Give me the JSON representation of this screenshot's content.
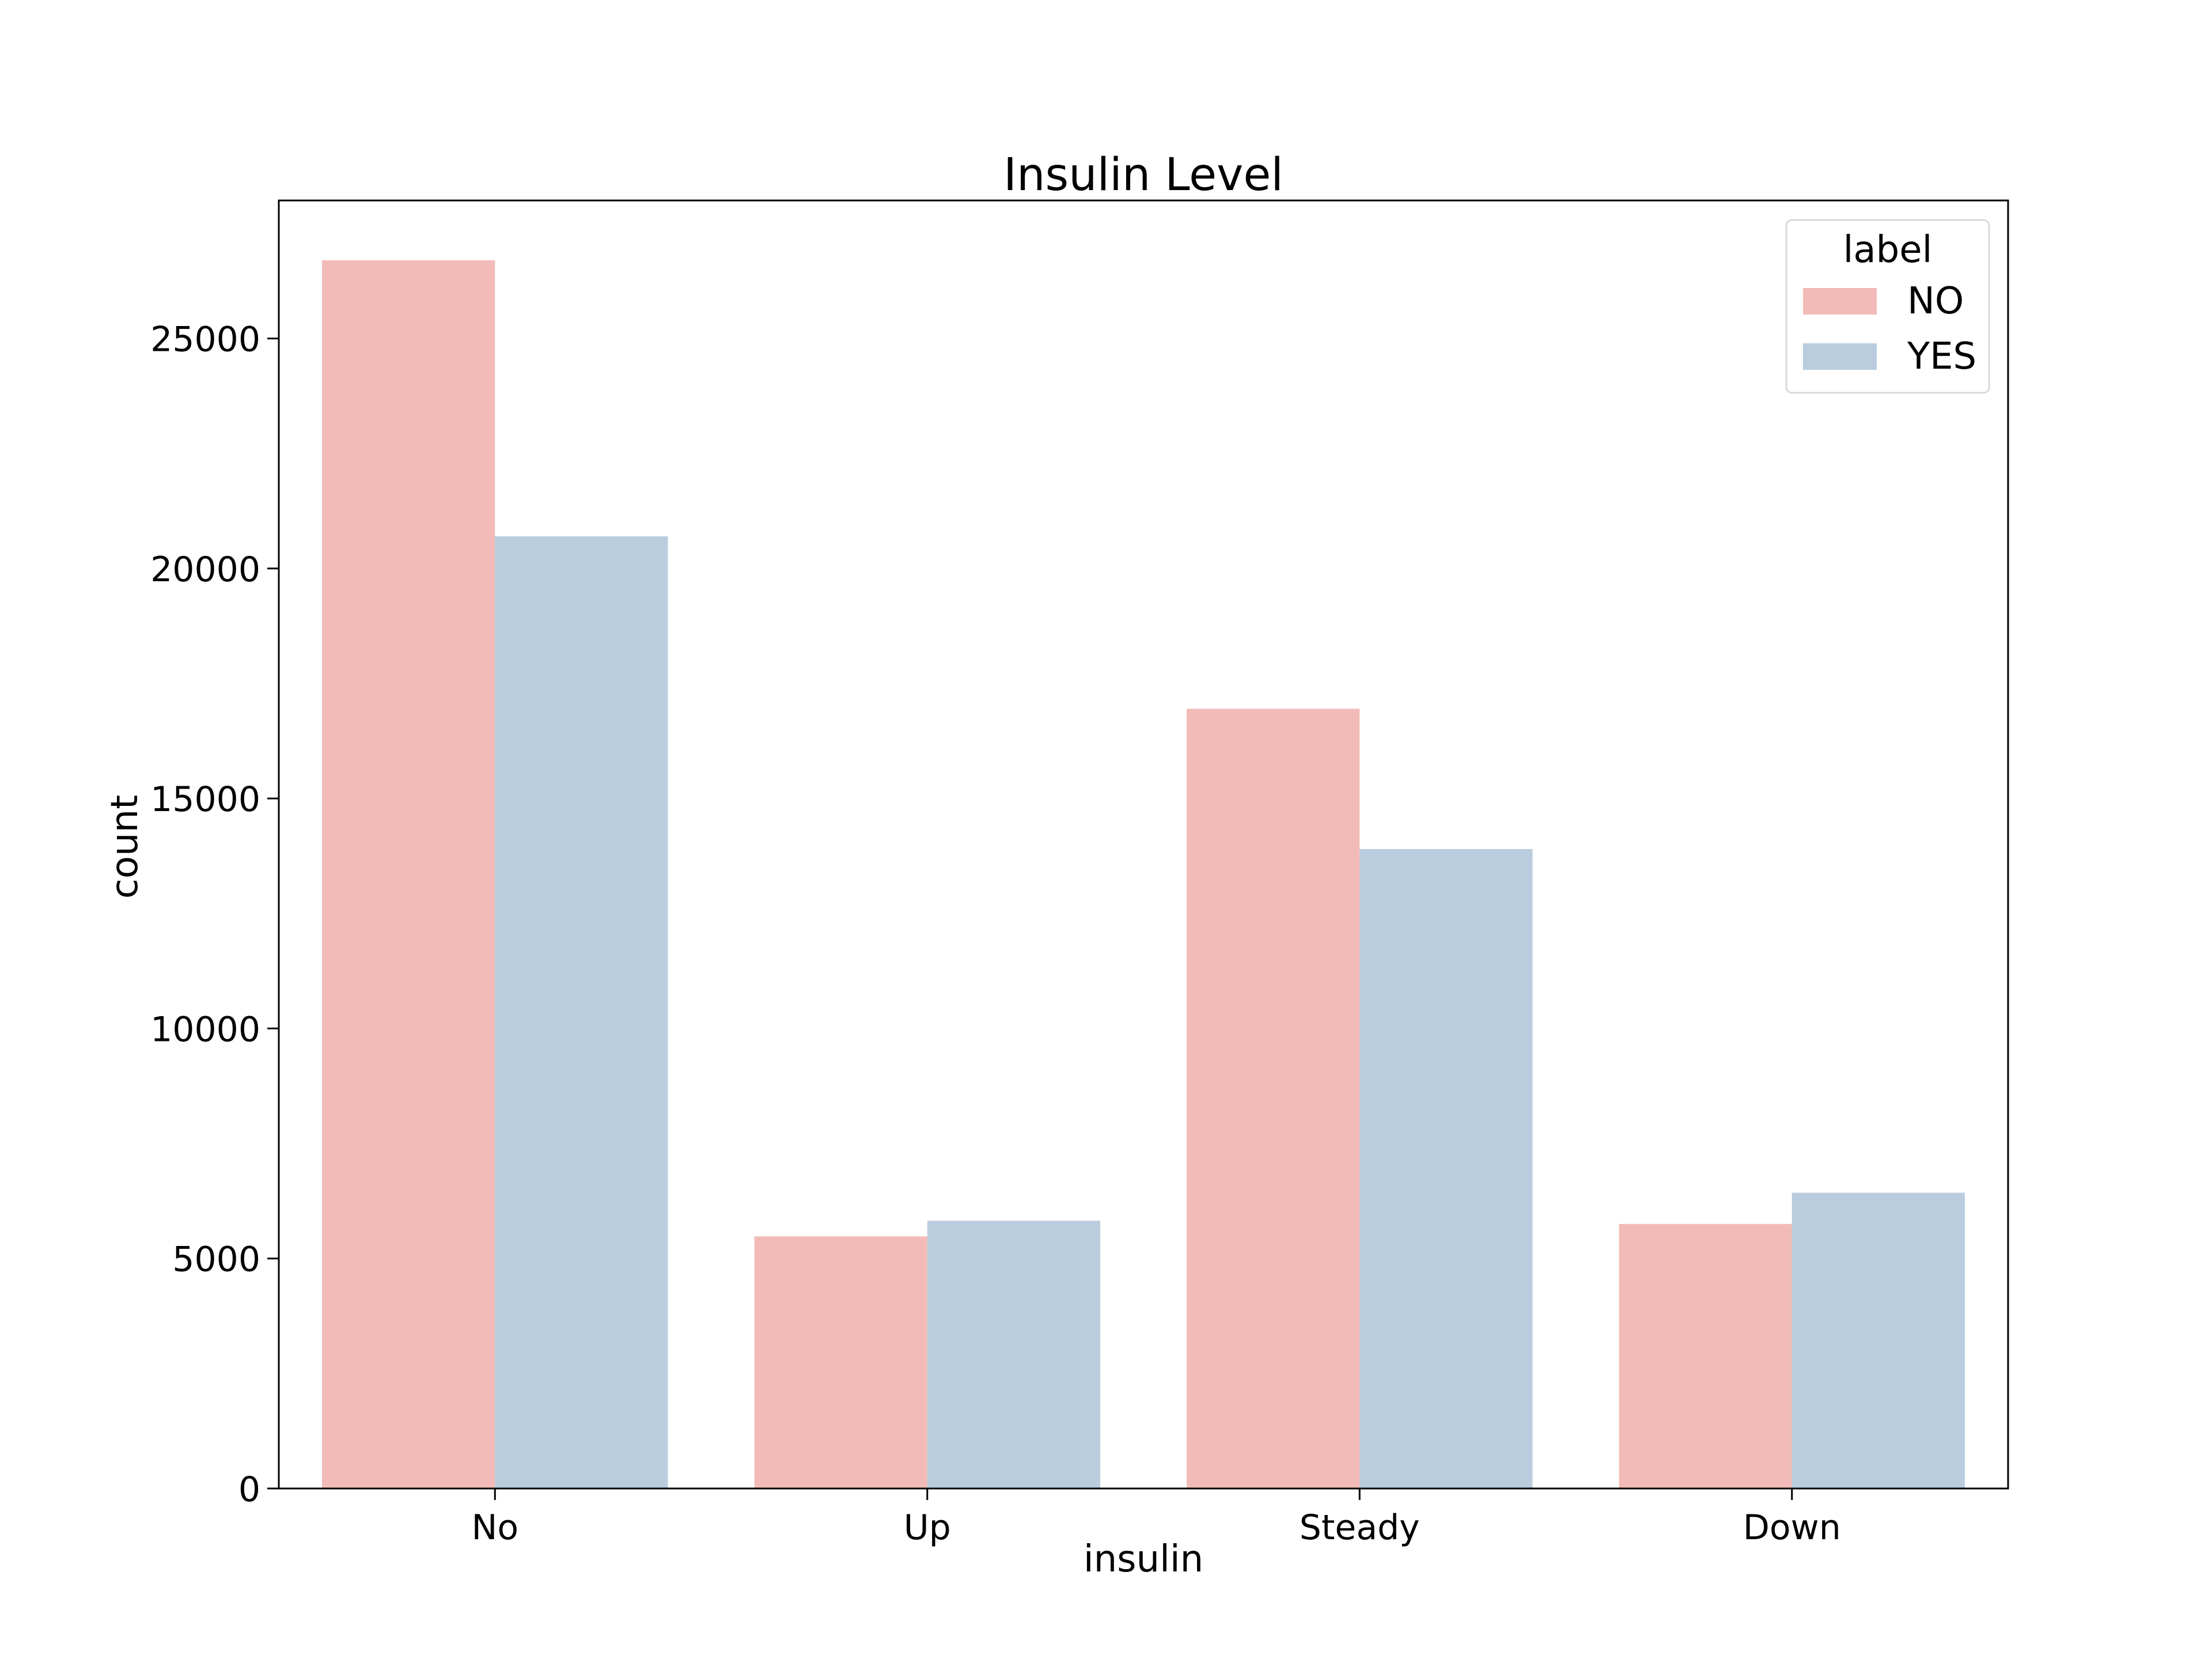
{
  "chart_data": {
    "type": "bar",
    "title": "Insulin Level",
    "xlabel": "insulin",
    "ylabel": "count",
    "categories": [
      "No",
      "Up",
      "Steady",
      "Down"
    ],
    "series": [
      {
        "name": "NO",
        "values": [
          26700,
          5480,
          16950,
          5750
        ],
        "color": "#f2bbb8"
      },
      {
        "name": "YES",
        "values": [
          20700,
          5820,
          13900,
          6430
        ],
        "color": "#b9cdde"
      }
    ],
    "ylim": [
      0,
      28000
    ],
    "yticks": [
      0,
      5000,
      10000,
      15000,
      20000,
      25000
    ],
    "legend": {
      "title": "label",
      "placement": "top-right"
    },
    "grid": false
  }
}
